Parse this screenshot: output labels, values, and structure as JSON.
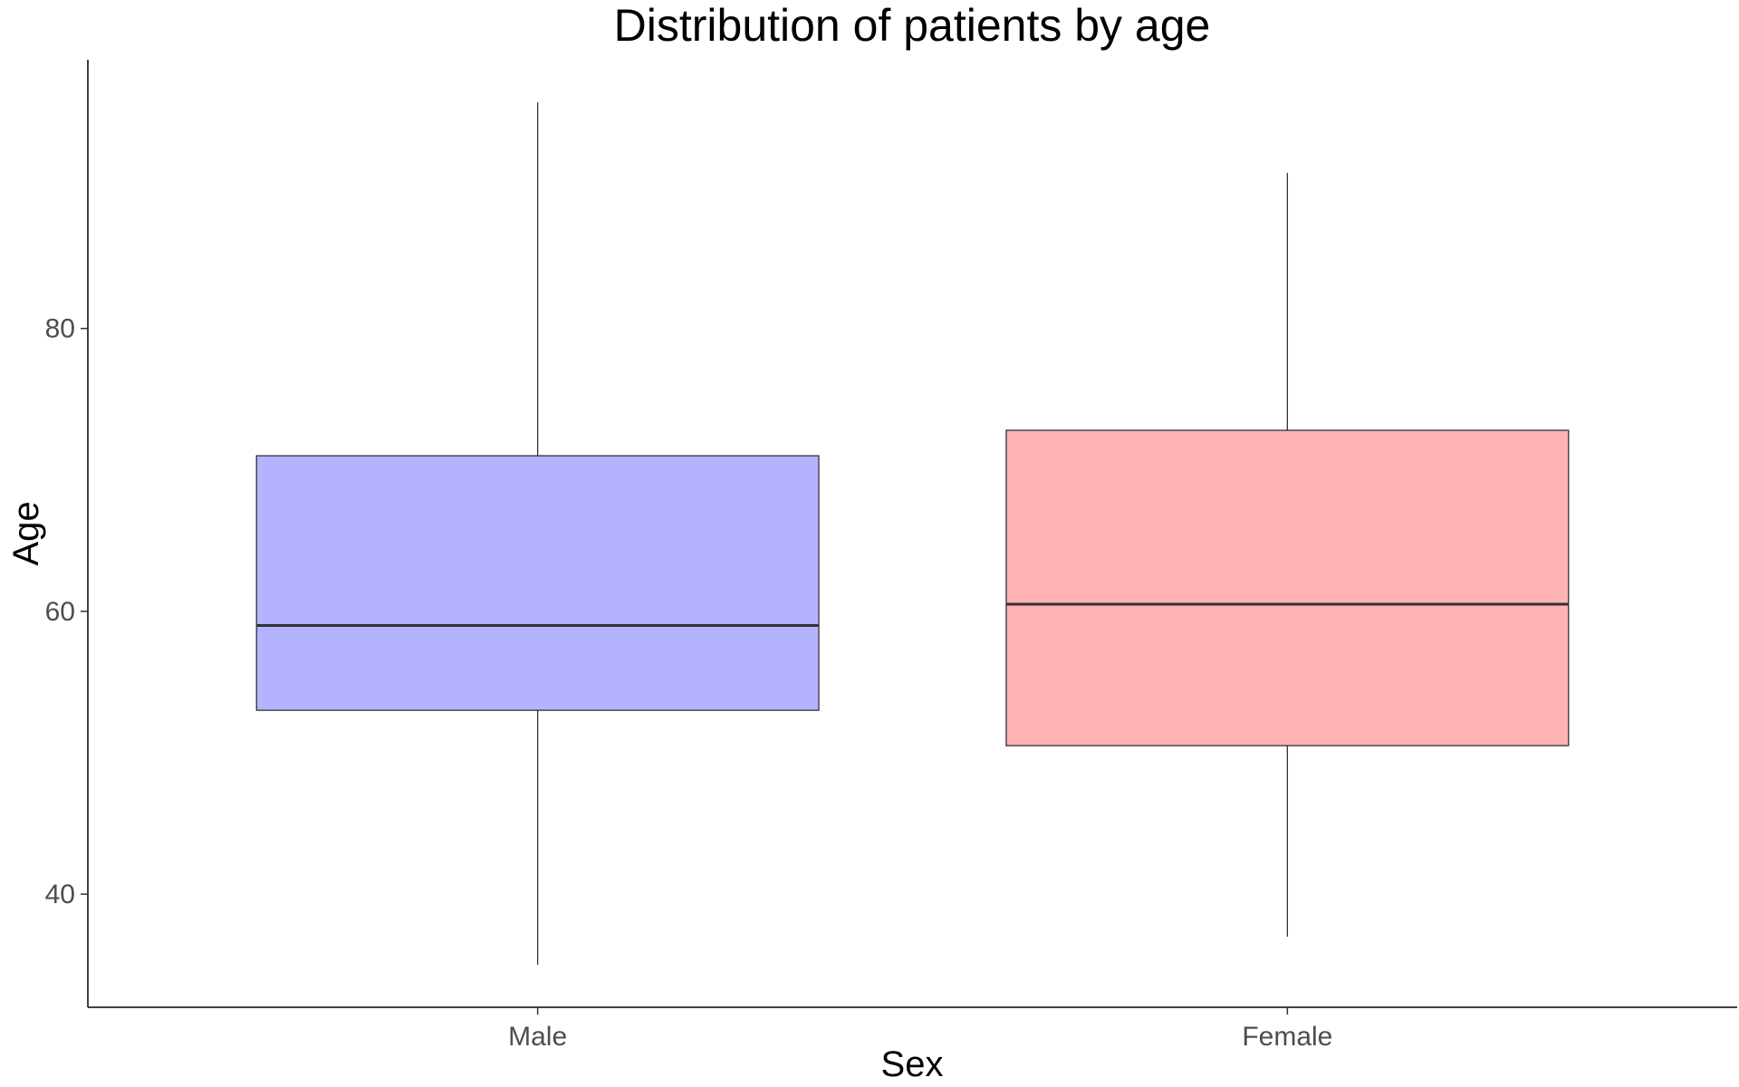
{
  "chart_data": {
    "type": "boxplot",
    "title": "Distribution of patients by age",
    "xlabel": "Sex",
    "ylabel": "Age",
    "categories": [
      "Male",
      "Female"
    ],
    "boxes": [
      {
        "category": "Male",
        "min": 35.0,
        "q1": 53.0,
        "median": 59.0,
        "q3": 71.0,
        "max": 96.0,
        "color": "#b3b3ff"
      },
      {
        "category": "Female",
        "min": 37.0,
        "q1": 50.5,
        "median": 60.5,
        "q3": 72.8,
        "max": 91.0,
        "color": "#ffb3b3"
      }
    ],
    "ylim": [
      32.0,
      99.0
    ],
    "yticks": [
      40,
      60,
      80
    ],
    "grid": false,
    "legend": "none"
  }
}
